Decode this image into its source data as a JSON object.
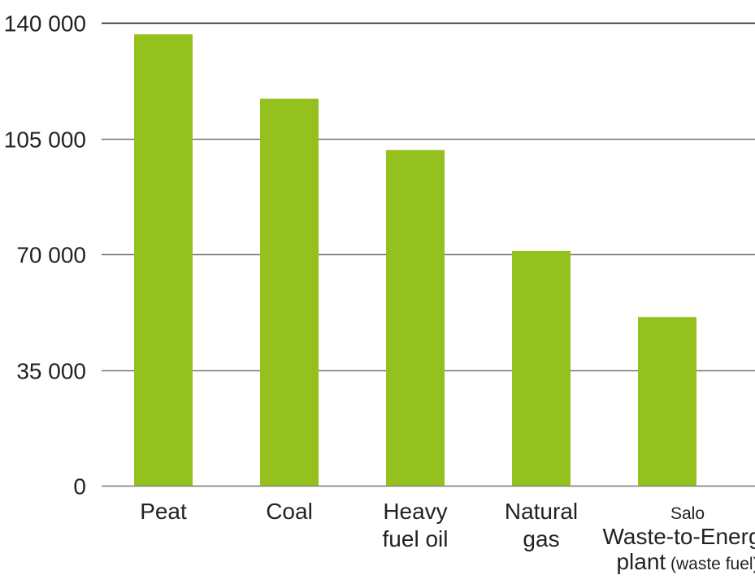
{
  "chart_data": {
    "type": "bar",
    "title": "",
    "xlabel": "",
    "ylabel": "",
    "ylim": [
      0,
      140000
    ],
    "yticks": [
      {
        "value": 0,
        "label": "0"
      },
      {
        "value": 35000,
        "label": "35 000"
      },
      {
        "value": 70000,
        "label": "70 000"
      },
      {
        "value": 105000,
        "label": "105 000"
      },
      {
        "value": 140000,
        "label": "140 000"
      }
    ],
    "grid": true,
    "legend": "none",
    "bar_color": "#95c11f",
    "categories": [
      {
        "label_lines": [
          {
            "text": "Peat"
          }
        ]
      },
      {
        "label_lines": [
          {
            "text": "Coal"
          }
        ]
      },
      {
        "label_lines": [
          {
            "text": "Heavy"
          },
          {
            "text": "fuel oil"
          }
        ]
      },
      {
        "label_lines": [
          {
            "text": "Natural"
          },
          {
            "text": "gas"
          }
        ]
      },
      {
        "label_lines": [
          {
            "text": "Salo",
            "small": true
          },
          {
            "text": "Waste-to-Energy"
          },
          {
            "text": "plant",
            "suffix": " (waste fuel)"
          }
        ]
      }
    ],
    "values": [
      136500,
      117000,
      101500,
      71000,
      51000
    ]
  }
}
